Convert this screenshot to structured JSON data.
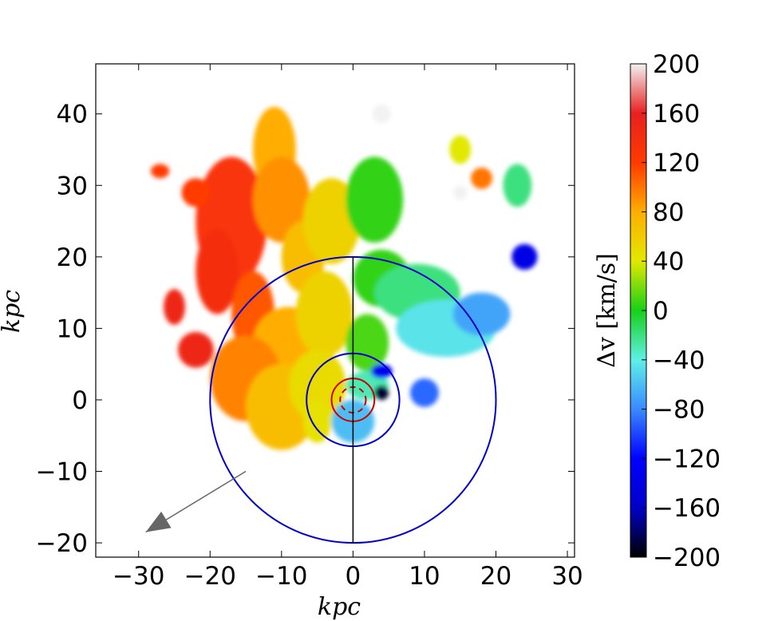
{
  "chart_data": {
    "type": "heatmap",
    "title": "",
    "xlabel": "kpc",
    "ylabel": "kpc",
    "xlim": [
      -36,
      31
    ],
    "ylim": [
      -22,
      47
    ],
    "x_ticks": [
      -30,
      -20,
      -10,
      0,
      10,
      20,
      30
    ],
    "y_ticks": [
      -20,
      -10,
      0,
      10,
      20,
      30,
      40
    ],
    "x_tick_labels": [
      "−30",
      "−20",
      "−10",
      "0",
      "10",
      "20",
      "30"
    ],
    "y_tick_labels": [
      "−20",
      "−10",
      "0",
      "10",
      "20",
      "30",
      "40"
    ],
    "colorbar": {
      "label": "Δv [km/s]",
      "range": [
        -200,
        200
      ],
      "ticks": [
        200,
        160,
        120,
        80,
        40,
        0,
        -40,
        -80,
        -120,
        -160,
        -200
      ],
      "tick_labels": [
        "200",
        "160",
        "120",
        "80",
        "40",
        "0",
        "−40",
        "−80",
        "−120",
        "−160",
        "−200"
      ],
      "colormap_stops": [
        {
          "v": -200,
          "color": "#000000"
        },
        {
          "v": -160,
          "color": "#0000c8"
        },
        {
          "v": -120,
          "color": "#0000ff"
        },
        {
          "v": -80,
          "color": "#3a8aff"
        },
        {
          "v": -40,
          "color": "#5ff0e6"
        },
        {
          "v": 0,
          "color": "#18d018"
        },
        {
          "v": 40,
          "color": "#e2e800"
        },
        {
          "v": 80,
          "color": "#ffae00"
        },
        {
          "v": 120,
          "color": "#ff3a00"
        },
        {
          "v": 160,
          "color": "#e82020"
        },
        {
          "v": 200,
          "color": "#f2f2f2"
        }
      ]
    },
    "circles": [
      {
        "cx": 0,
        "cy": 0,
        "r": 20,
        "color": "#0000cc",
        "style": "solid"
      },
      {
        "cx": 0,
        "cy": 0,
        "r": 6.5,
        "color": "#0000cc",
        "style": "solid"
      },
      {
        "cx": 0,
        "cy": 0,
        "r": 3,
        "color": "#cc0000",
        "style": "solid"
      },
      {
        "cx": 0,
        "cy": 0,
        "r": 1.8,
        "color": "#cc0000",
        "style": "dashed"
      }
    ],
    "vertical_line": {
      "x": 0,
      "y_from": -20,
      "y_to": 20,
      "color": "#000000"
    },
    "arrow": {
      "from": [
        -15,
        -10
      ],
      "to": [
        -29,
        -18.5
      ],
      "color": "#666666"
    },
    "velocity_regions": [
      {
        "cx": -17,
        "cy": 25,
        "rx": 5,
        "ry": 9,
        "v": 130
      },
      {
        "cx": -22,
        "cy": 29,
        "rx": 2,
        "ry": 2,
        "v": 120
      },
      {
        "cx": -19,
        "cy": 18,
        "rx": 3,
        "ry": 6,
        "v": 140
      },
      {
        "cx": -14,
        "cy": 12,
        "rx": 3,
        "ry": 6,
        "v": 110
      },
      {
        "cx": -11,
        "cy": 35,
        "rx": 3,
        "ry": 6,
        "v": 80
      },
      {
        "cx": -10,
        "cy": 28,
        "rx": 4,
        "ry": 6,
        "v": 90
      },
      {
        "cx": -7,
        "cy": 20,
        "rx": 3,
        "ry": 5,
        "v": 70
      },
      {
        "cx": -3,
        "cy": 25,
        "rx": 4,
        "ry": 6,
        "v": 55
      },
      {
        "cx": -9,
        "cy": 8,
        "rx": 5,
        "ry": 5,
        "v": 80
      },
      {
        "cx": -4,
        "cy": 12,
        "rx": 4,
        "ry": 6,
        "v": 55
      },
      {
        "cx": -15,
        "cy": 3,
        "rx": 5,
        "ry": 6,
        "v": 95
      },
      {
        "cx": -10,
        "cy": -1,
        "rx": 5,
        "ry": 6,
        "v": 70
      },
      {
        "cx": -5,
        "cy": 2,
        "rx": 4,
        "ry": 5,
        "v": 50
      },
      {
        "cx": -5,
        "cy": -3,
        "rx": 2,
        "ry": 3,
        "v": 45
      },
      {
        "cx": -22,
        "cy": 7,
        "rx": 2.5,
        "ry": 2.5,
        "v": 150
      },
      {
        "cx": -25,
        "cy": 13,
        "rx": 1.5,
        "ry": 2.5,
        "v": 150
      },
      {
        "cx": 3,
        "cy": 28,
        "rx": 4,
        "ry": 6,
        "v": 5
      },
      {
        "cx": 4,
        "cy": 17,
        "rx": 4,
        "ry": 4,
        "v": 5
      },
      {
        "cx": 9,
        "cy": 15,
        "rx": 6,
        "ry": 4,
        "v": -20
      },
      {
        "cx": 13,
        "cy": 10,
        "rx": 7,
        "ry": 4,
        "v": -45
      },
      {
        "cx": 18,
        "cy": 12,
        "rx": 4,
        "ry": 3,
        "v": -70
      },
      {
        "cx": 2,
        "cy": 8,
        "rx": 3,
        "ry": 4,
        "v": 10
      },
      {
        "cx": 2,
        "cy": 2,
        "rx": 3,
        "ry": 2,
        "v": -30
      },
      {
        "cx": 0,
        "cy": -3,
        "rx": 3,
        "ry": 3,
        "v": -60
      },
      {
        "cx": 10,
        "cy": 1,
        "rx": 2,
        "ry": 2,
        "v": -90
      },
      {
        "cx": 4,
        "cy": 4,
        "rx": 1.5,
        "ry": 1,
        "v": -130
      },
      {
        "cx": 4,
        "cy": 1,
        "rx": 1,
        "ry": 1,
        "v": -190
      },
      {
        "cx": 23,
        "cy": 30,
        "rx": 2,
        "ry": 3,
        "v": -20
      },
      {
        "cx": 24,
        "cy": 20,
        "rx": 1.8,
        "ry": 1.8,
        "v": -140
      },
      {
        "cx": 15,
        "cy": 35,
        "rx": 1.5,
        "ry": 2,
        "v": 40
      },
      {
        "cx": 18,
        "cy": 31,
        "rx": 1.5,
        "ry": 1.5,
        "v": 100
      },
      {
        "cx": 4,
        "cy": 40,
        "rx": 1.3,
        "ry": 1.3,
        "v": 200
      },
      {
        "cx": 15,
        "cy": 29,
        "rx": 1,
        "ry": 1,
        "v": 200
      },
      {
        "cx": -27,
        "cy": 32,
        "rx": 1.3,
        "ry": 1,
        "v": 120
      }
    ]
  }
}
